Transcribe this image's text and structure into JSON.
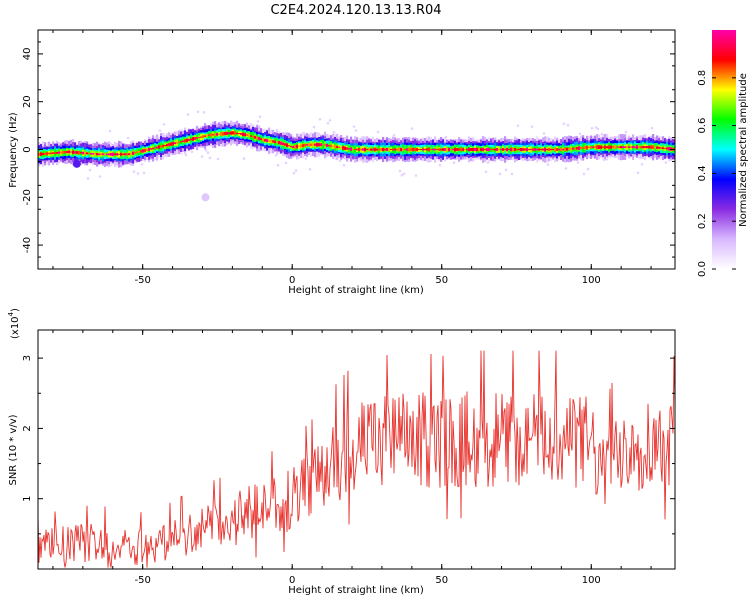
{
  "figure": {
    "title": "C2E4.2024.120.13.13.R04"
  },
  "chart_data": [
    {
      "type": "heatmap",
      "xlabel": "Height of straight line (km)",
      "ylabel": "Frequency (Hz)",
      "xlim": [
        -85,
        128
      ],
      "ylim": [
        -50,
        50
      ],
      "xticks": [
        -50,
        0,
        50,
        100
      ],
      "yticks": [
        -40,
        -20,
        0,
        20,
        40
      ],
      "ridge": {
        "x": [
          -85,
          -75,
          -65,
          -55,
          -45,
          -35,
          -28,
          -20,
          -15,
          -10,
          -5,
          0,
          5,
          10,
          15,
          20,
          30,
          40,
          50,
          60,
          70,
          80,
          90,
          100,
          110,
          120,
          128
        ],
        "y": [
          -2,
          -1,
          -2,
          -2,
          1,
          4,
          6,
          7,
          6,
          4,
          3,
          1,
          2,
          2,
          1,
          0,
          0,
          0,
          0,
          0,
          0,
          0,
          0,
          1,
          1,
          1,
          0
        ]
      },
      "isolated_blobs": [
        {
          "x": -29,
          "y": -20,
          "amplitude": 0.1
        },
        {
          "x": -72,
          "y": -6,
          "amplitude": 0.3
        }
      ],
      "colorbar": {
        "label": "Normalized spectral amplitude",
        "range": [
          0.0,
          1.0
        ],
        "ticks": [
          "0.0",
          "0.2",
          "0.4",
          "0.6",
          "0.8"
        ],
        "tick_values": [
          0.0,
          0.2,
          0.4,
          0.6,
          0.8
        ],
        "colormap": [
          "#ffffff",
          "#d8b8ff",
          "#8a2be2",
          "#0000ff",
          "#00ffff",
          "#00ff00",
          "#ffff00",
          "#ff0000",
          "#ff00aa"
        ]
      }
    },
    {
      "type": "line",
      "xlabel": "Height of straight line (km)",
      "ylabel": "SNR (10 * v/v)",
      "y_multiplier_label": "(x10",
      "y_multiplier_exp": "4",
      "y_multiplier_close": ")",
      "xlim": [
        -85,
        128
      ],
      "ylim": [
        0,
        3.4
      ],
      "xticks": [
        -50,
        0,
        50,
        100
      ],
      "yticks": [
        1,
        2,
        3
      ],
      "series": [
        {
          "color": "#e8322d",
          "x": [
            -85,
            -75,
            -65,
            -55,
            -45,
            -35,
            -28,
            -20,
            -10,
            0,
            10,
            15,
            20,
            30,
            40,
            50,
            60,
            70,
            80,
            90,
            100,
            104,
            110,
            120,
            128
          ],
          "y": [
            0.3,
            0.35,
            0.4,
            0.3,
            0.35,
            0.5,
            0.6,
            0.7,
            0.85,
            1.0,
            1.3,
            1.55,
            1.7,
            1.8,
            1.85,
            1.8,
            1.85,
            1.85,
            1.85,
            1.85,
            1.8,
            1.3,
            1.8,
            1.8,
            1.8
          ]
        }
      ]
    }
  ]
}
